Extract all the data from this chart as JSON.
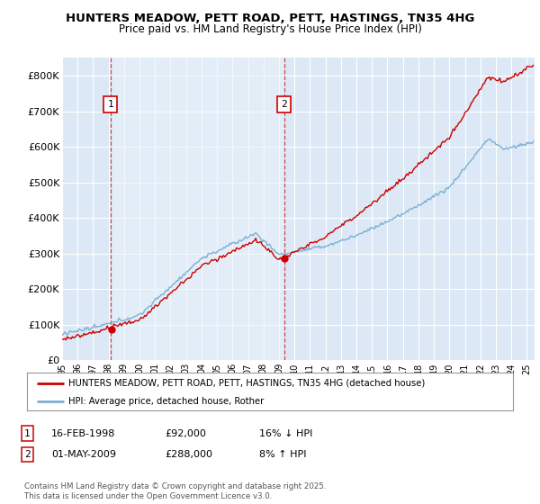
{
  "title": "HUNTERS MEADOW, PETT ROAD, PETT, HASTINGS, TN35 4HG",
  "subtitle": "Price paid vs. HM Land Registry's House Price Index (HPI)",
  "ylim": [
    0,
    850000
  ],
  "yticks": [
    0,
    100000,
    200000,
    300000,
    400000,
    500000,
    600000,
    700000,
    800000
  ],
  "ytick_labels": [
    "£0",
    "£100K",
    "£200K",
    "£300K",
    "£400K",
    "£500K",
    "£600K",
    "£700K",
    "£800K"
  ],
  "bg_color": "#dce8f5",
  "grid_color": "#ffffff",
  "red_color": "#cc0000",
  "blue_color": "#7bafd4",
  "marker1_year": 1998.12,
  "marker1_value": 92000,
  "marker1_label": "1",
  "marker2_year": 2009.33,
  "marker2_value": 288000,
  "marker2_label": "2",
  "legend_line1": "HUNTERS MEADOW, PETT ROAD, PETT, HASTINGS, TN35 4HG (detached house)",
  "legend_line2": "HPI: Average price, detached house, Rother",
  "footer": "Contains HM Land Registry data © Crown copyright and database right 2025.\nThis data is licensed under the Open Government Licence v3.0.",
  "xmin": 1995,
  "xmax": 2025.5
}
